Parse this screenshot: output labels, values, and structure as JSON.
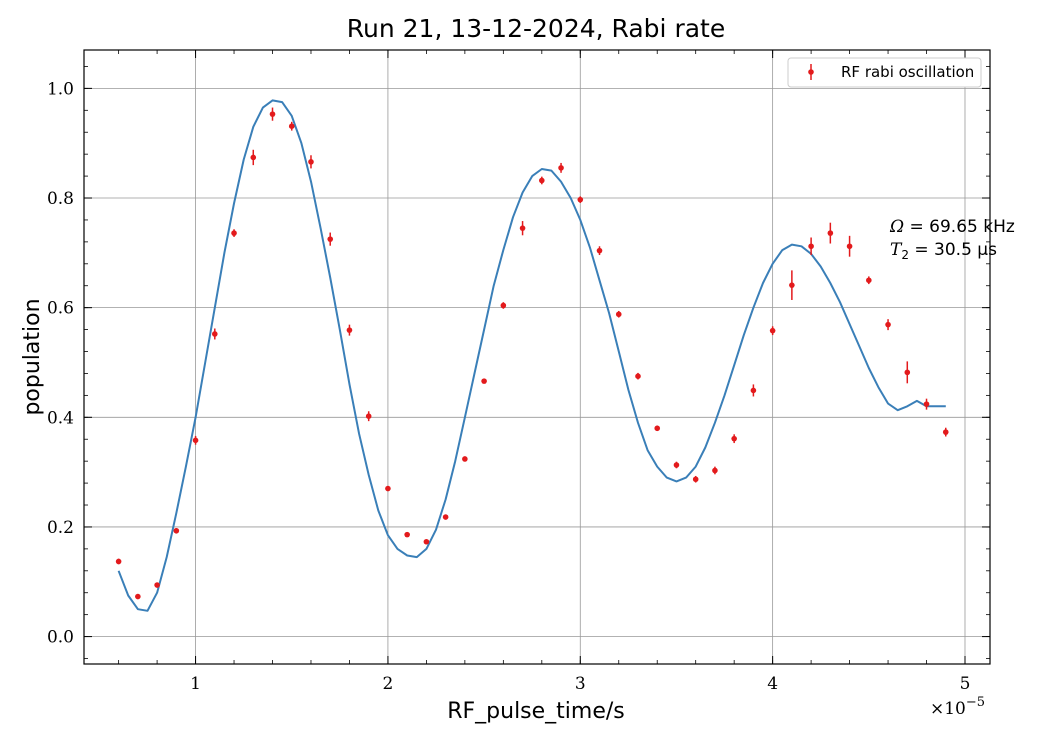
{
  "chart_data": {
    "type": "scatter",
    "title": "Run 21, 13-12-2024, Rabi rate",
    "xlabel": "RF_pulse_time/s",
    "ylabel": "population",
    "x_scale_label": "×10",
    "x_scale_exp": "−5",
    "x_scale": 1e-05,
    "xlim": [
      0.42,
      5.13
    ],
    "ylim": [
      -0.05,
      1.07
    ],
    "xticks": [
      1,
      2,
      3,
      4,
      5
    ],
    "xtick_labels": [
      "1",
      "2",
      "3",
      "4",
      "5"
    ],
    "yticks": [
      0.0,
      0.2,
      0.4,
      0.6,
      0.8,
      1.0
    ],
    "ytick_labels": [
      "0.0",
      "0.2",
      "0.4",
      "0.6",
      "0.8",
      "1.0"
    ],
    "grid": true,
    "legend_position": "top-right",
    "legend": "RF rabi oscillation",
    "annotation": {
      "omega_symbol": "Ω",
      "omega_text": " = 69.65 kHz",
      "t2_symbol": "T",
      "t2_sub": "2",
      "t2_text": " = 30.5 µs"
    },
    "colors": {
      "data": "#e31a1c",
      "fit": "#3a7fb8",
      "grid": "#999999"
    },
    "series": [
      {
        "name": "RF rabi oscillation",
        "kind": "errorbar",
        "x": [
          0.6,
          0.7,
          0.8,
          0.9,
          1.0,
          1.1,
          1.2,
          1.3,
          1.4,
          1.5,
          1.6,
          1.7,
          1.8,
          1.9,
          2.0,
          2.1,
          2.2,
          2.3,
          2.4,
          2.5,
          2.6,
          2.7,
          2.8,
          2.9,
          3.0,
          3.1,
          3.2,
          3.3,
          3.4,
          3.5,
          3.6,
          3.7,
          3.8,
          3.9,
          4.0,
          4.1,
          4.2,
          4.3,
          4.4,
          4.5,
          4.6,
          4.7,
          4.8,
          4.9
        ],
        "y": [
          0.137,
          0.073,
          0.094,
          0.193,
          0.358,
          0.552,
          0.736,
          0.874,
          0.953,
          0.931,
          0.866,
          0.725,
          0.559,
          0.402,
          0.27,
          0.186,
          0.173,
          0.218,
          0.324,
          0.466,
          0.604,
          0.745,
          0.832,
          0.855,
          0.797,
          0.704,
          0.588,
          0.475,
          0.38,
          0.313,
          0.287,
          0.303,
          0.361,
          0.449,
          0.558,
          0.641,
          0.712,
          0.736,
          0.712,
          0.65,
          0.569,
          0.482,
          0.424,
          0.373
        ],
        "err": [
          0.005,
          0.004,
          0.004,
          0.005,
          0.008,
          0.01,
          0.007,
          0.014,
          0.012,
          0.008,
          0.012,
          0.012,
          0.01,
          0.009,
          0.004,
          0.004,
          0.004,
          0.004,
          0.004,
          0.004,
          0.006,
          0.013,
          0.007,
          0.009,
          0.006,
          0.008,
          0.006,
          0.006,
          0.005,
          0.006,
          0.006,
          0.007,
          0.008,
          0.011,
          0.008,
          0.027,
          0.016,
          0.019,
          0.019,
          0.007,
          0.01,
          0.02,
          0.01,
          0.008
        ]
      },
      {
        "kind": "fit",
        "x": [
          0.6,
          0.65,
          0.7,
          0.75,
          0.8,
          0.85,
          0.9,
          0.95,
          1.0,
          1.05,
          1.1,
          1.15,
          1.2,
          1.25,
          1.3,
          1.35,
          1.4,
          1.45,
          1.5,
          1.55,
          1.6,
          1.65,
          1.7,
          1.75,
          1.8,
          1.85,
          1.9,
          1.95,
          2.0,
          2.05,
          2.1,
          2.15,
          2.2,
          2.25,
          2.3,
          2.35,
          2.4,
          2.45,
          2.5,
          2.55,
          2.6,
          2.65,
          2.7,
          2.75,
          2.8,
          2.85,
          2.9,
          2.95,
          3.0,
          3.05,
          3.1,
          3.15,
          3.2,
          3.25,
          3.3,
          3.35,
          3.4,
          3.45,
          3.5,
          3.55,
          3.6,
          3.65,
          3.7,
          3.75,
          3.8,
          3.85,
          3.9,
          3.95,
          4.0,
          4.05,
          4.1,
          4.15,
          4.2,
          4.25,
          4.3,
          4.35,
          4.4,
          4.45,
          4.5,
          4.55,
          4.6,
          4.65,
          4.7,
          4.75,
          4.8,
          4.85,
          4.9
        ],
        "y": [
          0.12,
          0.075,
          0.05,
          0.047,
          0.08,
          0.145,
          0.225,
          0.31,
          0.4,
          0.5,
          0.6,
          0.7,
          0.79,
          0.87,
          0.93,
          0.965,
          0.978,
          0.975,
          0.95,
          0.9,
          0.83,
          0.745,
          0.655,
          0.56,
          0.46,
          0.37,
          0.295,
          0.23,
          0.185,
          0.16,
          0.148,
          0.145,
          0.16,
          0.195,
          0.25,
          0.32,
          0.4,
          0.48,
          0.56,
          0.64,
          0.705,
          0.765,
          0.81,
          0.84,
          0.853,
          0.85,
          0.83,
          0.8,
          0.76,
          0.71,
          0.65,
          0.59,
          0.52,
          0.45,
          0.39,
          0.34,
          0.31,
          0.29,
          0.283,
          0.29,
          0.31,
          0.345,
          0.39,
          0.44,
          0.495,
          0.55,
          0.6,
          0.645,
          0.68,
          0.705,
          0.715,
          0.712,
          0.698,
          0.675,
          0.645,
          0.61,
          0.57,
          0.53,
          0.49,
          0.455,
          0.425,
          0.413,
          0.42,
          0.43,
          0.42,
          0.42,
          0.42
        ]
      }
    ]
  }
}
